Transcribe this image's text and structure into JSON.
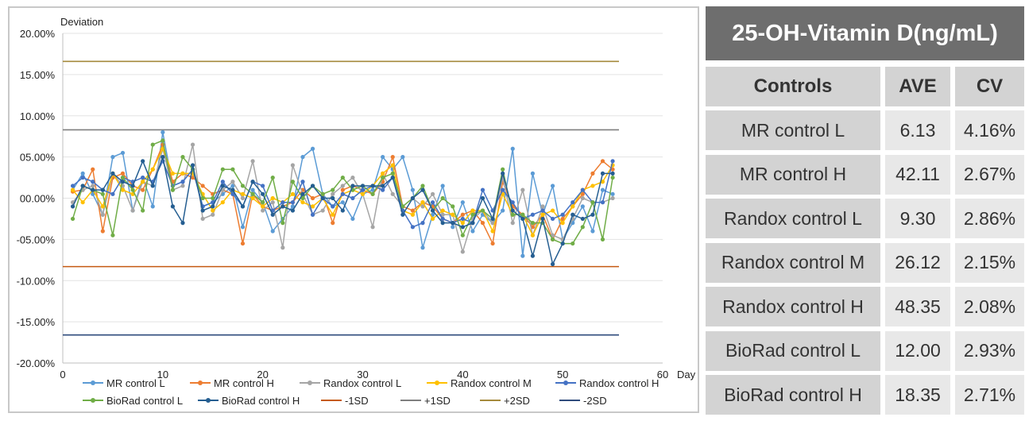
{
  "chart_data": {
    "type": "line",
    "ylabel": "Deviation",
    "xlabel": "Day",
    "xlim": [
      0,
      60
    ],
    "ylim": [
      -20,
      20
    ],
    "x_ticks": [
      "0",
      "10",
      "20",
      "30",
      "40",
      "50",
      "60"
    ],
    "y_ticks": [
      "20.00%",
      "15.00%",
      "10.00%",
      "05.00%",
      "00.00%",
      "-05.00%",
      "-10.00%",
      "-15.00%",
      "-20.00%"
    ],
    "series": [
      {
        "name": "MR control L",
        "color": "#5b9bd5",
        "values": [
          1.0,
          3.0,
          0.5,
          -2.0,
          5.0,
          5.5,
          -1.5,
          2.5,
          -1.0,
          8.0,
          1.5,
          2.0,
          3.5,
          -1.0,
          -0.5,
          0.5,
          1.5,
          -3.5,
          1.0,
          -0.5,
          -4.0,
          -2.5,
          -1.0,
          5.0,
          6.0,
          0.5,
          -1.0,
          -0.5,
          -2.5,
          0.5,
          1.0,
          5.0,
          3.5,
          5.0,
          1.0,
          -6.0,
          -2.0,
          1.5,
          -3.5,
          -0.5,
          -4.0,
          -2.0,
          -3.0,
          -1.5,
          6.0,
          -7.0,
          3.0,
          -2.0,
          1.5,
          -5.0,
          -3.0,
          -1.0,
          -4.0,
          1.0,
          0.5
        ]
      },
      {
        "name": "MR control H",
        "color": "#ed7d31",
        "values": [
          0.8,
          1.0,
          3.5,
          -4.0,
          2.5,
          3.0,
          1.5,
          1.0,
          3.5,
          6.5,
          2.0,
          3.0,
          2.5,
          1.5,
          0.5,
          1.0,
          0.5,
          -5.5,
          0.5,
          -1.0,
          -1.5,
          -1.0,
          -0.5,
          1.0,
          0.0,
          0.5,
          -3.0,
          1.0,
          1.5,
          1.0,
          0.5,
          2.0,
          5.0,
          -1.0,
          -1.5,
          -0.5,
          -1.0,
          -2.5,
          -3.0,
          -2.0,
          -1.5,
          -3.0,
          -5.5,
          2.0,
          -1.0,
          -2.0,
          -3.5,
          -2.0,
          -5.0,
          -2.5,
          -1.0,
          0.5,
          3.0,
          4.5,
          3.5
        ]
      },
      {
        "name": "Randox control L",
        "color": "#a5a5a5",
        "values": [
          -0.5,
          1.0,
          1.5,
          -2.0,
          3.0,
          1.5,
          -1.5,
          2.0,
          1.5,
          6.0,
          1.0,
          1.5,
          6.5,
          -2.5,
          -2.0,
          1.0,
          2.0,
          0.0,
          4.5,
          -1.5,
          -0.5,
          -6.0,
          4.0,
          0.5,
          -2.0,
          -1.5,
          0.5,
          1.5,
          2.5,
          0.5,
          -3.5,
          3.0,
          0.5,
          -1.0,
          0.0,
          -1.0,
          0.5,
          -2.0,
          -2.0,
          -6.5,
          -2.5,
          -1.5,
          -3.0,
          2.5,
          -3.0,
          1.0,
          -4.5,
          -1.0,
          -4.5,
          -5.0,
          -2.5,
          0.0,
          -0.5,
          -0.5,
          0.0
        ]
      },
      {
        "name": "Randox control M",
        "color": "#ffc000",
        "values": [
          1.0,
          -0.5,
          1.0,
          -1.0,
          3.0,
          1.0,
          0.5,
          2.0,
          3.5,
          6.0,
          3.0,
          3.0,
          3.0,
          0.5,
          -1.5,
          -0.5,
          1.0,
          0.5,
          0.0,
          -1.0,
          0.0,
          -0.5,
          0.5,
          -0.5,
          -1.0,
          0.0,
          -2.0,
          0.5,
          1.0,
          0.5,
          1.5,
          3.0,
          4.0,
          -1.5,
          -2.0,
          -0.5,
          -2.5,
          -1.5,
          -2.0,
          -3.0,
          -1.5,
          -1.5,
          -4.0,
          0.5,
          -2.0,
          -2.0,
          -4.5,
          -2.0,
          -1.5,
          -3.0,
          -1.0,
          1.0,
          1.5,
          2.0,
          4.0
        ]
      },
      {
        "name": "Randox control H",
        "color": "#4472c4",
        "values": [
          1.5,
          2.5,
          2.0,
          1.0,
          0.5,
          2.5,
          2.0,
          2.5,
          2.0,
          4.5,
          1.5,
          2.0,
          3.5,
          -1.0,
          -0.5,
          2.0,
          0.5,
          -1.0,
          2.0,
          1.5,
          -1.5,
          -0.5,
          -0.5,
          2.0,
          -2.0,
          0.0,
          -1.0,
          0.5,
          0.0,
          1.0,
          1.5,
          1.0,
          2.5,
          -1.5,
          -3.5,
          -3.0,
          -0.5,
          -2.5,
          -3.0,
          -2.5,
          -3.0,
          1.0,
          -1.5,
          1.0,
          -0.5,
          -2.5,
          -2.0,
          -1.5,
          -2.5,
          -2.0,
          -0.5,
          1.0,
          -0.5,
          -0.5,
          4.5
        ]
      },
      {
        "name": "BioRad control L",
        "color": "#70ad47",
        "values": [
          -2.5,
          1.5,
          1.0,
          0.5,
          -4.5,
          2.5,
          1.0,
          -1.5,
          6.5,
          7.0,
          1.0,
          5.0,
          3.5,
          0.0,
          0.0,
          3.5,
          3.5,
          1.5,
          0.5,
          -0.5,
          2.5,
          -3.0,
          2.0,
          0.0,
          1.5,
          0.5,
          1.0,
          2.5,
          1.0,
          1.5,
          0.5,
          2.5,
          3.0,
          -1.0,
          0.0,
          1.5,
          -1.5,
          0.0,
          -1.0,
          -4.5,
          -2.0,
          -1.5,
          -2.5,
          3.5,
          -2.0,
          -2.0,
          -3.0,
          -3.0,
          -5.0,
          -5.5,
          -5.5,
          -3.5,
          -0.5,
          -5.0,
          2.5
        ]
      },
      {
        "name": "BioRad control H",
        "color": "#255e91",
        "values": [
          -1.0,
          1.5,
          1.0,
          1.0,
          3.0,
          2.0,
          1.5,
          4.5,
          1.5,
          5.0,
          -1.0,
          -3.0,
          4.0,
          -1.5,
          -1.0,
          1.5,
          1.0,
          -1.0,
          2.0,
          0.5,
          -2.0,
          -1.0,
          -1.5,
          0.5,
          1.5,
          0.0,
          0.0,
          -1.5,
          1.5,
          1.5,
          1.5,
          1.5,
          2.5,
          -2.0,
          0.0,
          1.0,
          -1.5,
          -3.0,
          -3.0,
          -3.5,
          -3.0,
          0.0,
          -2.5,
          3.0,
          -1.5,
          -2.5,
          -7.0,
          -2.5,
          -8.0,
          -5.5,
          -2.0,
          -2.5,
          -2.0,
          3.0,
          3.0
        ]
      },
      {
        "name": "-1SD",
        "color": "#c55a11",
        "constant": -8.3
      },
      {
        "name": "+1SD",
        "color": "#7f7f7f",
        "constant": 8.3
      },
      {
        "name": "+2SD",
        "color": "#a58a3c",
        "constant": 16.6
      },
      {
        "name": "-2SD",
        "color": "#2f4b7c",
        "constant": -16.6
      }
    ]
  },
  "table": {
    "title": "25-OH-Vitamin D(ng/mL)",
    "headers": [
      "Controls",
      "AVE",
      "CV"
    ],
    "rows": [
      [
        "MR control L",
        "6.13",
        "4.16%"
      ],
      [
        "MR control H",
        "42.11",
        "2.67%"
      ],
      [
        "Randox control L",
        "9.30",
        "2.86%"
      ],
      [
        "Randox control M",
        "26.12",
        "2.15%"
      ],
      [
        "Randox control H",
        "48.35",
        "2.08%"
      ],
      [
        "BioRad control L",
        "12.00",
        "2.93%"
      ],
      [
        "BioRad control H",
        "18.35",
        "2.71%"
      ]
    ]
  }
}
